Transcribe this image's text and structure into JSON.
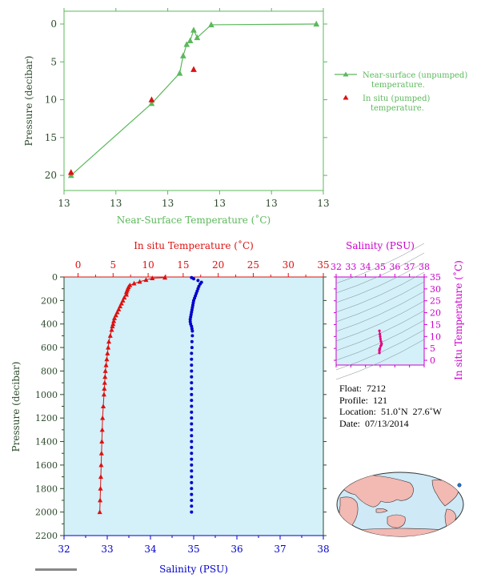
{
  "colors": {
    "green": "#5cb85c",
    "red": "#dd1111",
    "blue": "#0000cc",
    "magenta": "#cc00cc",
    "axis_dark": "#2b4a2b",
    "plot_bg": "#d4f0f8"
  },
  "chart_data": [
    {
      "type": "line",
      "id": "near_surface",
      "xlabel": "Near-Surface Temperature (˚C)",
      "ylabel": "Pressure (decibar)",
      "xticks": [
        "13",
        "13",
        "13",
        "13",
        "13",
        "13"
      ],
      "yticks": [
        0,
        5,
        10,
        15,
        20
      ],
      "ylim": [
        0,
        22
      ],
      "y_reversed": true,
      "grid": false,
      "legend_placement": "right",
      "series": [
        {
          "name": "Near-surface (unpumped) temperature.",
          "marker": "triangle",
          "x": [
            13.0,
            13.23,
            13.31,
            13.32,
            13.33,
            13.34,
            13.35,
            13.36,
            13.4,
            13.7
          ],
          "y": [
            20.0,
            10.5,
            6.5,
            4.2,
            2.7,
            2.2,
            0.8,
            1.8,
            0.1,
            0.0
          ]
        },
        {
          "name": "In situ (pumped) temperature.",
          "marker": "triangle",
          "x": [
            13.0,
            13.23,
            13.35
          ],
          "y": [
            19.6,
            10.0,
            6.0
          ]
        }
      ]
    },
    {
      "type": "scatter",
      "id": "profile",
      "top_xlabel": "In situ Temperature (˚C)",
      "bottom_xlabel": "Salinity (PSU)",
      "ylabel": "Pressure (decibar)",
      "temp_ticks": [
        0,
        5,
        10,
        15,
        20,
        25,
        30,
        35
      ],
      "sal_ticks": [
        32,
        33,
        34,
        35,
        36,
        37,
        38
      ],
      "pressure_ticks": [
        0,
        200,
        400,
        600,
        800,
        1000,
        1200,
        1400,
        1600,
        1800,
        2000,
        2200
      ],
      "temp_xlim": [
        -2,
        35
      ],
      "sal_xlim": [
        32,
        38
      ],
      "ylim": [
        0,
        2200
      ],
      "y_reversed": true,
      "temperature": {
        "p": [
          5,
          10,
          25,
          40,
          55,
          70,
          85,
          100,
          115,
          130,
          150,
          175,
          200,
          225,
          250,
          275,
          300,
          325,
          350,
          375,
          400,
          420,
          450,
          500,
          550,
          600,
          650,
          700,
          750,
          800,
          850,
          900,
          950,
          1000,
          1100,
          1200,
          1300,
          1400,
          1500,
          1600,
          1700,
          1800,
          1900,
          2000
        ],
        "t": [
          12.4,
          10.6,
          9.7,
          8.8,
          8.0,
          7.4,
          7.2,
          7.1,
          7.0,
          6.9,
          6.9,
          6.6,
          6.4,
          6.2,
          6.0,
          5.8,
          5.6,
          5.4,
          5.2,
          5.1,
          5.0,
          4.9,
          4.8,
          4.6,
          4.4,
          4.3,
          4.2,
          4.1,
          4.0,
          3.9,
          3.85,
          3.8,
          3.75,
          3.7,
          3.6,
          3.5,
          3.45,
          3.4,
          3.35,
          3.3,
          3.25,
          3.2,
          3.15,
          3.1
        ]
      },
      "salinity": {
        "p": [
          5,
          15,
          30,
          45,
          60,
          80,
          100,
          120,
          140,
          160,
          180,
          200,
          220,
          240,
          260,
          280,
          300,
          320,
          340,
          360,
          380,
          400,
          420,
          440,
          460,
          500,
          550,
          600,
          650,
          700,
          750,
          800,
          850,
          900,
          950,
          1000,
          1050,
          1100,
          1150,
          1200,
          1250,
          1300,
          1350,
          1400,
          1450,
          1500,
          1550,
          1600,
          1650,
          1700,
          1750,
          1800,
          1850,
          1900,
          1950,
          2000
        ],
        "s": [
          34.95,
          35.0,
          35.1,
          35.18,
          35.15,
          35.12,
          35.1,
          35.08,
          35.06,
          35.04,
          35.02,
          35.0,
          34.99,
          34.98,
          34.97,
          34.96,
          34.95,
          34.94,
          34.93,
          34.92,
          34.92,
          34.93,
          34.95,
          34.96,
          34.97,
          34.97,
          34.96,
          34.96,
          34.95,
          34.95,
          34.95,
          34.95,
          34.95,
          34.95,
          34.95,
          34.95,
          34.95,
          34.95,
          34.95,
          34.95,
          34.95,
          34.95,
          34.95,
          34.95,
          34.95,
          34.95,
          34.95,
          34.95,
          34.95,
          34.95,
          34.95,
          34.95,
          34.95,
          34.95,
          34.95,
          34.95
        ]
      }
    },
    {
      "type": "scatter",
      "id": "ts_diagram",
      "top_xlabel": "Salinity (PSU)",
      "right_ylabel": "In situ Temperature (˚C)",
      "sal_ticks": [
        32,
        33,
        34,
        35,
        36,
        37,
        38
      ],
      "temp_ticks": [
        0,
        5,
        10,
        15,
        20,
        25,
        30,
        35
      ],
      "xlim": [
        32,
        38
      ],
      "ylim": [
        -2,
        35
      ],
      "s": [
        34.95,
        34.98,
        35.0,
        35.02,
        35.05,
        35.1,
        35.08,
        35.04,
        34.98,
        34.96,
        34.95,
        34.95
      ],
      "t": [
        12.4,
        11.0,
        10.0,
        9.0,
        8.0,
        7.0,
        6.5,
        6.0,
        5.0,
        4.5,
        4.0,
        3.1
      ]
    }
  ],
  "info": {
    "float_label": "Float:",
    "float_value": "7212",
    "profile_label": "Profile:",
    "profile_value": "121",
    "location_label": "Location:",
    "location_value": "51.0˚N  27.6˚W",
    "date_label": "Date:",
    "date_value": "07/13/2014"
  },
  "map": {
    "marker_lat": 51.0,
    "marker_lon": -27.6
  }
}
